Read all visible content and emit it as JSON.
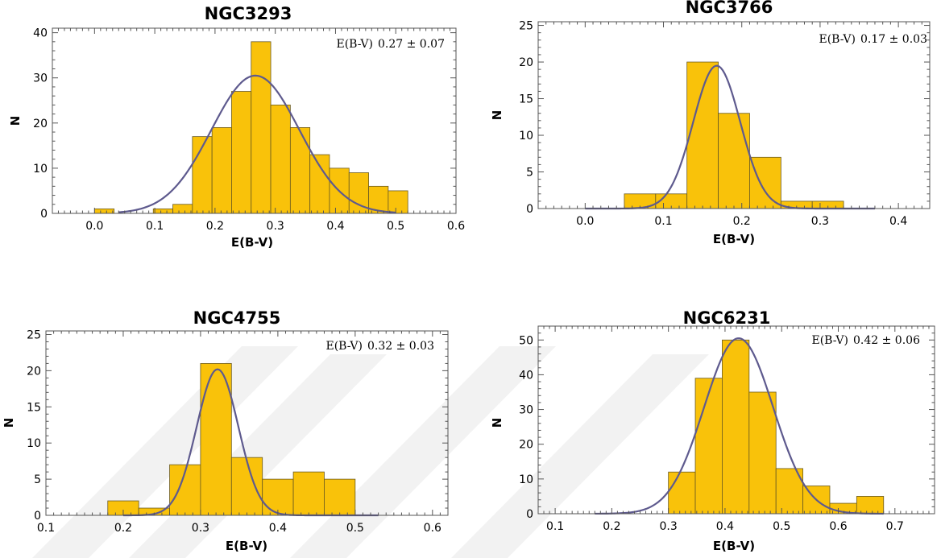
{
  "colors": {
    "bar": "#f9c20a",
    "fit": "#5e5a8e",
    "frame": "#555555"
  },
  "chart_data": [
    {
      "type": "bar",
      "title": "NGC3293",
      "xlabel": "E(B-V)",
      "ylabel": "N",
      "xlim": [
        -0.07,
        0.6
      ],
      "ylim": [
        0,
        41
      ],
      "xticks": [
        "0.0",
        "0.1",
        "0.2",
        "0.3",
        "0.4",
        "0.5",
        "0.6"
      ],
      "yticks": [
        "0",
        "10",
        "20",
        "30",
        "40"
      ],
      "bin_width": 0.0325,
      "bin_starts": [
        0.0,
        0.0325,
        0.065,
        0.0975,
        0.13,
        0.1625,
        0.195,
        0.2275,
        0.26,
        0.2925,
        0.325,
        0.3575,
        0.39,
        0.4225,
        0.455,
        0.4875
      ],
      "values": [
        1,
        0,
        0,
        1,
        2,
        17,
        19,
        27,
        38,
        24,
        19,
        13,
        10,
        9,
        6,
        5
      ],
      "fit": {
        "mean": 0.267,
        "sigma": 0.073,
        "peak": 30.5,
        "range": [
          0.04,
          0.5
        ]
      },
      "annotation": {
        "label": "E(B-V)",
        "value": "0.27 ±  0.07"
      }
    },
    {
      "type": "bar",
      "title": "NGC3766",
      "xlabel": "E(B-V)",
      "ylabel": "N",
      "xlim": [
        -0.06,
        0.44
      ],
      "ylim": [
        0,
        25.5
      ],
      "xticks": [
        "0.0",
        "0.1",
        "0.2",
        "0.3",
        "0.4"
      ],
      "yticks": [
        "0",
        "5",
        "10",
        "15",
        "20",
        "25"
      ],
      "bin_width": 0.04,
      "bin_starts": [
        0.05,
        0.09,
        0.13,
        0.17,
        0.21,
        0.25,
        0.29
      ],
      "values": [
        2,
        2,
        20,
        13,
        7,
        1,
        1
      ],
      "fit": {
        "mean": 0.168,
        "sigma": 0.03,
        "peak": 19.5,
        "range": [
          0.0,
          0.37
        ]
      },
      "annotation": {
        "label": "E(B-V)",
        "value": "0.17 ±  0.03"
      }
    },
    {
      "type": "bar",
      "title": "NGC4755",
      "xlabel": "E(B-V)",
      "ylabel": "N",
      "xlim": [
        0.1,
        0.62
      ],
      "ylim": [
        0,
        25.5
      ],
      "xticks": [
        "0.1",
        "0.2",
        "0.3",
        "0.4",
        "0.5",
        "0.6"
      ],
      "yticks": [
        "0",
        "5",
        "10",
        "15",
        "20",
        "25"
      ],
      "bin_width": 0.04,
      "bin_starts": [
        0.18,
        0.22,
        0.26,
        0.3,
        0.34,
        0.38,
        0.42,
        0.46
      ],
      "values": [
        2,
        1,
        7,
        21,
        8,
        5,
        6,
        5
      ],
      "fit": {
        "mean": 0.322,
        "sigma": 0.027,
        "peak": 20.2,
        "range": [
          0.2,
          0.53
        ]
      },
      "annotation": {
        "label": "E(B-V)",
        "value": "0.32 ±  0.03"
      }
    },
    {
      "type": "bar",
      "title": "NGC6231",
      "xlabel": "E(B-V)",
      "ylabel": "N",
      "xlim": [
        0.07,
        0.77
      ],
      "ylim": [
        0,
        54
      ],
      "xticks": [
        "0.1",
        "0.2",
        "0.3",
        "0.4",
        "0.5",
        "0.6",
        "0.7"
      ],
      "yticks": [
        "0",
        "10",
        "20",
        "30",
        "40",
        "50"
      ],
      "bin_width": 0.0475,
      "bin_starts": [
        0.3,
        0.3475,
        0.395,
        0.4425,
        0.49,
        0.5375,
        0.585,
        0.6325
      ],
      "values": [
        12,
        39,
        50,
        35,
        13,
        8,
        3,
        5
      ],
      "fit": {
        "mean": 0.424,
        "sigma": 0.061,
        "peak": 50.5,
        "range": [
          0.17,
          0.68
        ]
      },
      "annotation": {
        "label": "E(B-V)",
        "value": "0.42 ±  0.06"
      }
    }
  ]
}
